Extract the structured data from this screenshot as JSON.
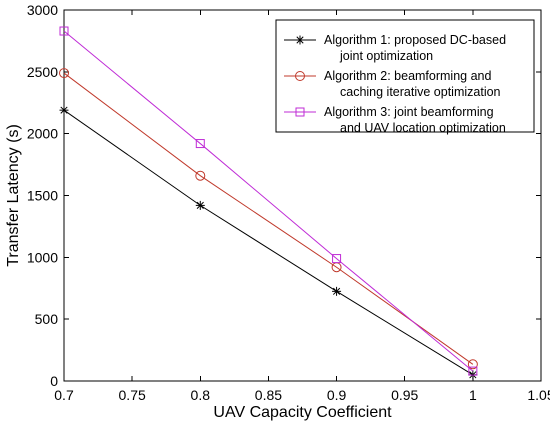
{
  "chart_data": {
    "type": "line",
    "title": "",
    "xlabel": "UAV Capacity Coefficient",
    "ylabel": "Transfer Latency (s)",
    "xlim": [
      0.7,
      1.05
    ],
    "ylim": [
      0,
      3000
    ],
    "xticks": [
      "0.7",
      "0.75",
      "0.8",
      "0.85",
      "0.9",
      "0.95",
      "1",
      "1.05"
    ],
    "yticks": [
      "0",
      "500",
      "1000",
      "1500",
      "2000",
      "2500",
      "3000"
    ],
    "grid": false,
    "legend_position": "top-right",
    "x": [
      0.7,
      0.8,
      0.9,
      1.0
    ],
    "series": [
      {
        "name_lines": [
          "Algorithm 1: proposed DC-based",
          "joint optimization"
        ],
        "values": [
          2190,
          1420,
          725,
          50
        ],
        "color": "#000000",
        "marker": "asterisk"
      },
      {
        "name_lines": [
          "Algorithm 2: beamforming and",
          "caching iterative optimization"
        ],
        "values": [
          2490,
          1660,
          920,
          135
        ],
        "color": "#c0392b",
        "marker": "circle"
      },
      {
        "name_lines": [
          "Algorithm 3: joint beamforming",
          "and UAV location optimization"
        ],
        "values": [
          2830,
          1920,
          990,
          80
        ],
        "color": "#bf2bd6",
        "marker": "square"
      }
    ]
  }
}
